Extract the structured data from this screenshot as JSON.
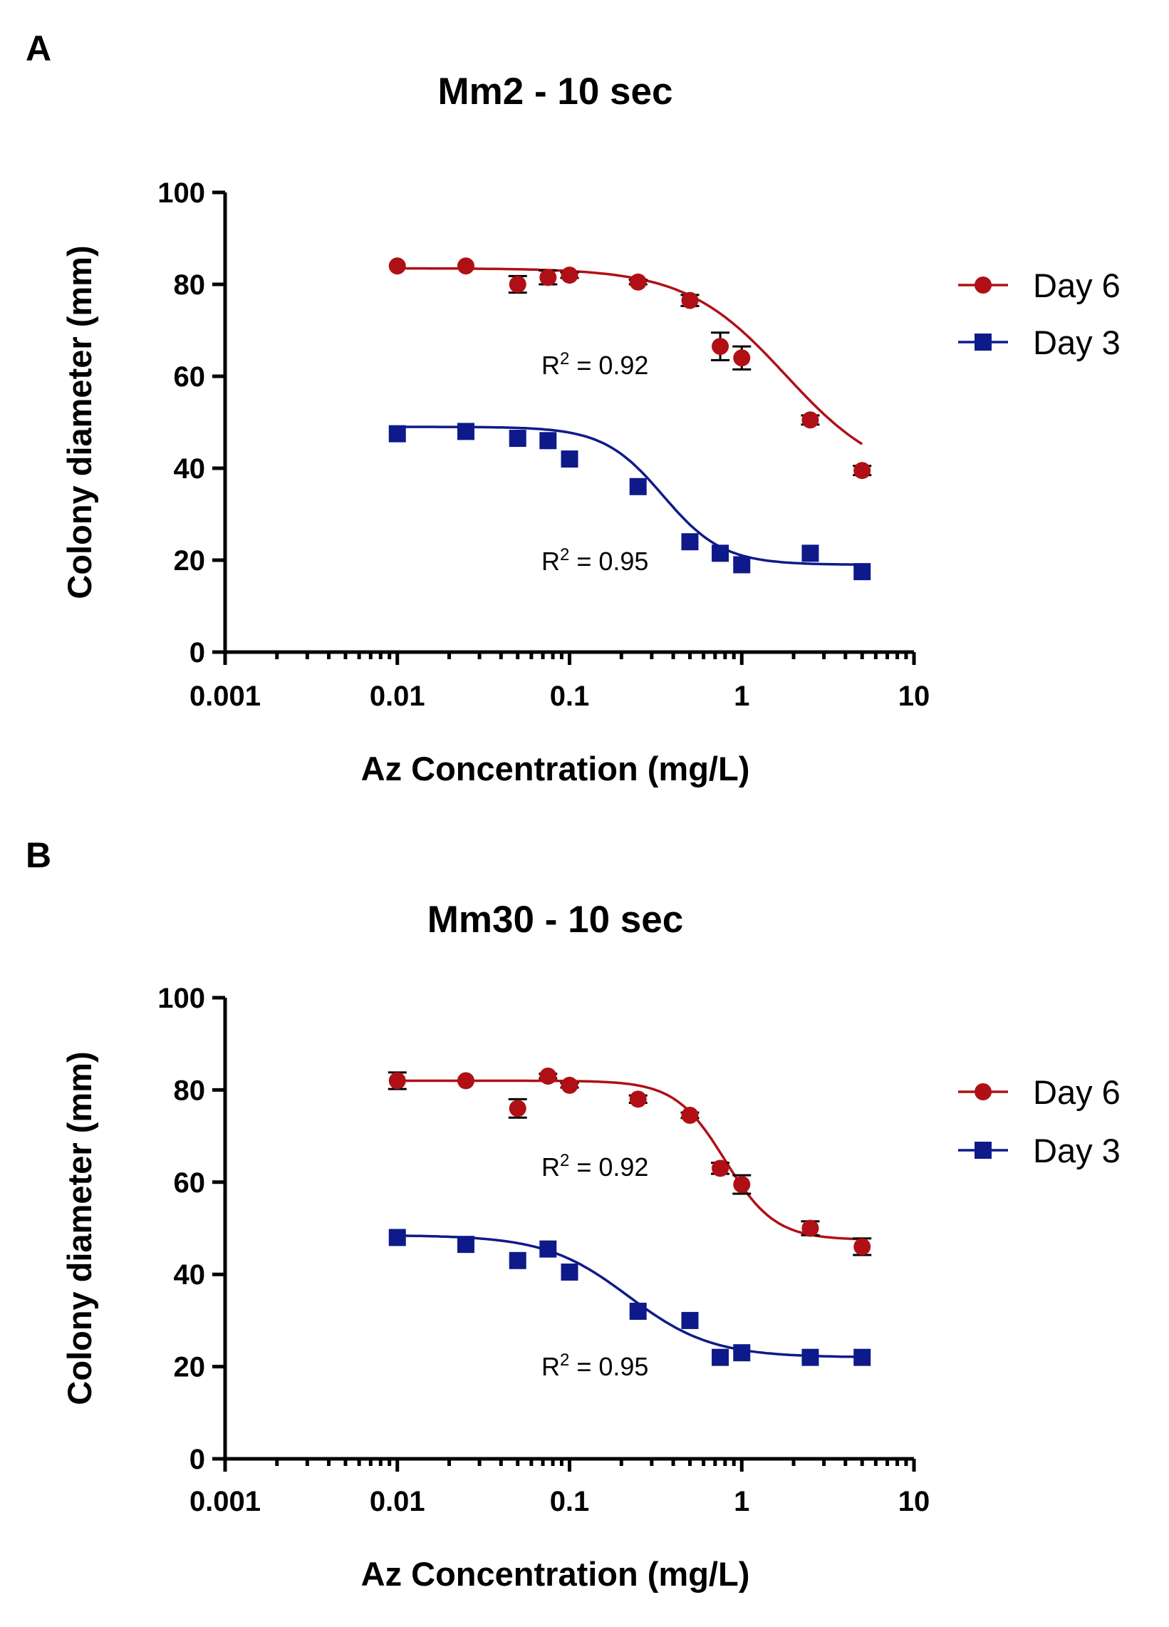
{
  "chart_data": [
    {
      "type": "scatter",
      "panel_letter": "A",
      "title": "Mm2 - 10 sec",
      "xlabel": "Az Concentration (mg/L)",
      "ylabel": "Colony diameter (mm)",
      "xscale": "log",
      "xlim": [
        0.001,
        10
      ],
      "ylim": [
        0,
        100
      ],
      "xticks": [
        0.001,
        0.01,
        0.1,
        1,
        10
      ],
      "xtick_labels": [
        "0.001",
        "0.01",
        "0.1",
        "1",
        "10"
      ],
      "yticks": [
        0,
        20,
        40,
        60,
        80,
        100
      ],
      "ytick_labels": [
        "0",
        "20",
        "40",
        "60",
        "80",
        "100"
      ],
      "legend_position": "right",
      "x": [
        0.01,
        0.025,
        0.05,
        0.075,
        0.1,
        0.25,
        0.5,
        0.75,
        1,
        2.5,
        5
      ],
      "series": [
        {
          "name": "Day 6",
          "color": "#b01015",
          "marker": "circle",
          "values": [
            84,
            84,
            80,
            81.5,
            82,
            80.5,
            76.5,
            66.5,
            64,
            50.5,
            39.5
          ],
          "errors": [
            0,
            0,
            1.8,
            1.5,
            0.6,
            0.5,
            1.2,
            3,
            2.5,
            1,
            1
          ],
          "fit": {
            "top": 83.5,
            "bottom": 37,
            "ec50": 1.8,
            "hill": 1.5
          },
          "r2_label": "R",
          "r2_value": "= 0.92"
        },
        {
          "name": "Day 3",
          "color": "#0e1a8a",
          "marker": "square",
          "values": [
            47.5,
            48,
            46.5,
            46,
            42,
            36,
            24,
            21.5,
            19,
            21.5,
            17.5
          ],
          "errors": [
            0,
            0,
            0,
            0,
            0,
            0,
            0,
            0,
            0,
            0,
            0
          ],
          "fit": {
            "top": 49,
            "bottom": 19,
            "ec50": 0.35,
            "hill": 2.5
          },
          "r2_label": "R",
          "r2_value": "= 0.95"
        }
      ]
    },
    {
      "type": "scatter",
      "panel_letter": "B",
      "title": "Mm30 - 10 sec",
      "xlabel": "Az Concentration (mg/L)",
      "ylabel": "Colony diameter (mm)",
      "xscale": "log",
      "xlim": [
        0.001,
        10
      ],
      "ylim": [
        0,
        100
      ],
      "xticks": [
        0.001,
        0.01,
        0.1,
        1,
        10
      ],
      "xtick_labels": [
        "0.001",
        "0.01",
        "0.1",
        "1",
        "10"
      ],
      "yticks": [
        0,
        20,
        40,
        60,
        80,
        100
      ],
      "ytick_labels": [
        "0",
        "20",
        "40",
        "60",
        "80",
        "100"
      ],
      "legend_position": "right",
      "x": [
        0.01,
        0.025,
        0.05,
        0.075,
        0.1,
        0.25,
        0.5,
        0.75,
        1,
        2.5,
        5
      ],
      "series": [
        {
          "name": "Day 6",
          "color": "#b01015",
          "marker": "circle",
          "values": [
            82,
            82,
            76,
            83,
            81,
            78,
            74.5,
            63,
            59.5,
            50,
            46
          ],
          "errors": [
            1.8,
            0,
            2,
            0.5,
            0.5,
            0.8,
            0.6,
            1.2,
            2,
            1.5,
            1.8
          ],
          "fit": {
            "top": 82,
            "bottom": 47.5,
            "ec50": 0.8,
            "hill": 3.0
          },
          "r2_label": "R",
          "r2_value": "= 0.92"
        },
        {
          "name": "Day 3",
          "color": "#0e1a8a",
          "marker": "square",
          "values": [
            48,
            46.5,
            43,
            45.5,
            40.5,
            32,
            30,
            22,
            23,
            22,
            22
          ],
          "errors": [
            0,
            0,
            0,
            0,
            0,
            0,
            0,
            0,
            0,
            0,
            0
          ],
          "fit": {
            "top": 48.5,
            "bottom": 22,
            "ec50": 0.22,
            "hill": 1.8
          },
          "r2_label": "R",
          "r2_value": "= 0.95"
        }
      ]
    }
  ]
}
